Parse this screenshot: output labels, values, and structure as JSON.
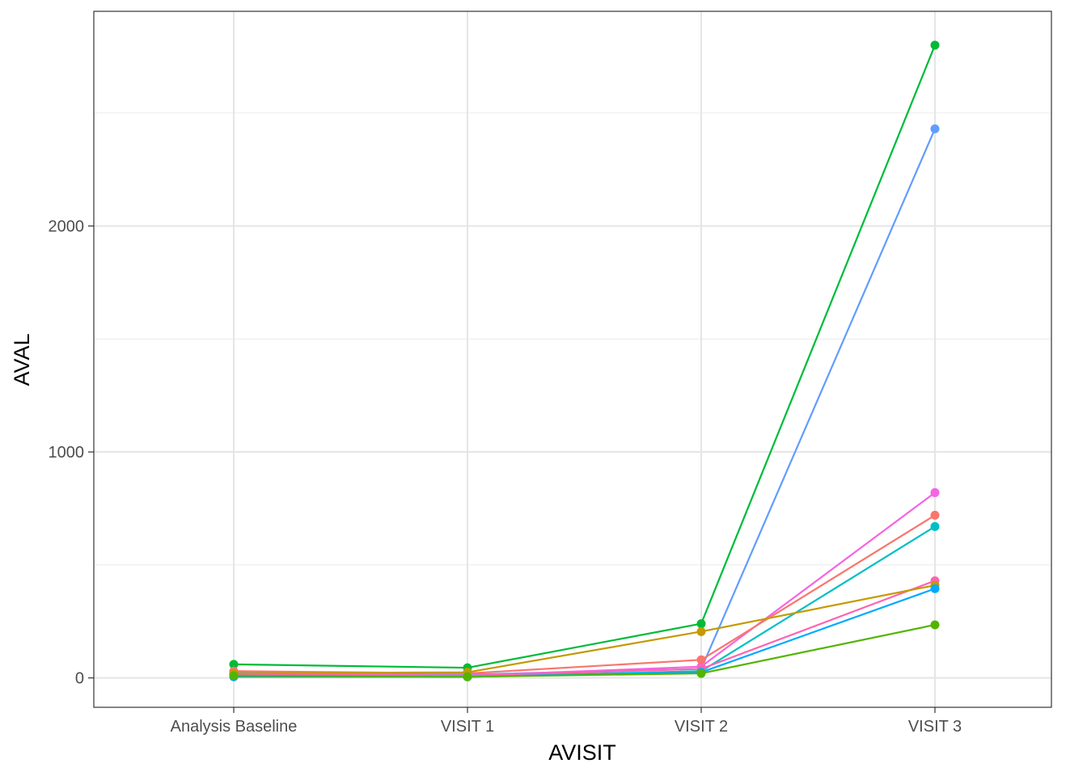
{
  "chart_data": {
    "type": "line",
    "title": "",
    "xlabel": "AVISIT",
    "ylabel": "AVAL",
    "categories": [
      "Analysis Baseline",
      "VISIT 1",
      "VISIT 2",
      "VISIT 3"
    ],
    "y_ticks": [
      0,
      1000,
      2000
    ],
    "ylim": [
      -130,
      2950
    ],
    "grid": true,
    "legend": "none",
    "series": [
      {
        "color": "#00BA38",
        "values": [
          60,
          45,
          240,
          2800
        ]
      },
      {
        "color": "#619CFF",
        "values": [
          25,
          15,
          40,
          2430
        ]
      },
      {
        "color": "#F564E3",
        "values": [
          20,
          10,
          50,
          820
        ]
      },
      {
        "color": "#F8766D",
        "values": [
          30,
          20,
          80,
          720
        ]
      },
      {
        "color": "#00BFC4",
        "values": [
          10,
          5,
          30,
          670
        ]
      },
      {
        "color": "#FF64B0",
        "values": [
          15,
          10,
          40,
          430
        ]
      },
      {
        "color": "#C49A00",
        "values": [
          20,
          25,
          205,
          410
        ]
      },
      {
        "color": "#00A9FF",
        "values": [
          5,
          5,
          25,
          395
        ]
      },
      {
        "color": "#53B400",
        "values": [
          10,
          5,
          20,
          235
        ]
      }
    ]
  }
}
